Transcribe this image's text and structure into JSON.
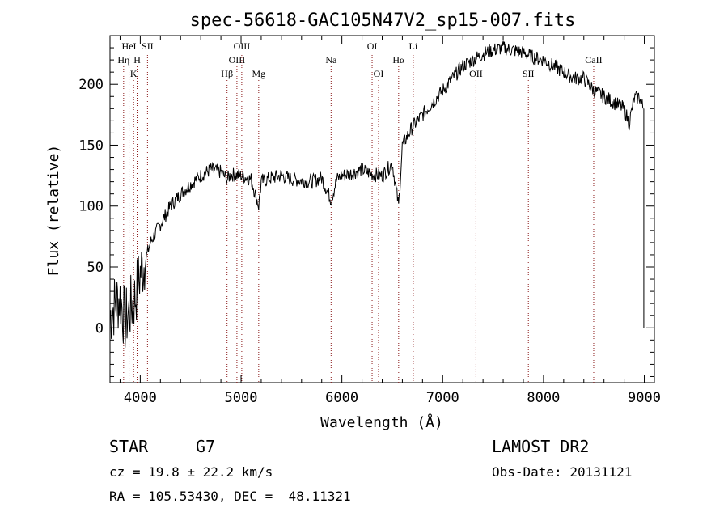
{
  "chart_data": {
    "type": "line",
    "title": "spec-56618-GAC105N47V2_sp15-007.fits",
    "xlabel": "Wavelength (Å)",
    "ylabel": "Flux (relative)",
    "xlim": [
      3700,
      9100
    ],
    "ylim": [
      -45,
      240
    ],
    "xticks": [
      4000,
      5000,
      6000,
      7000,
      8000,
      9000
    ],
    "yticks": [
      0,
      50,
      100,
      150,
      200
    ],
    "xtick_labels": [
      "4000",
      "5000",
      "6000",
      "7000",
      "8000",
      "9000"
    ],
    "ytick_labels": [
      "0",
      "50",
      "100",
      "150",
      "200"
    ],
    "grid": false,
    "series": [
      {
        "x": [
          3700,
          3750,
          3800,
          3850,
          3900,
          3950,
          4000,
          4050,
          4100,
          4200,
          4300,
          4400,
          4500,
          4600,
          4700,
          4800,
          4860,
          4900,
          5000,
          5100,
          5175,
          5200,
          5300,
          5400,
          5500,
          5600,
          5700,
          5800,
          5893,
          5950,
          6000,
          6100,
          6200,
          6300,
          6400,
          6500,
          6563,
          6600,
          6700,
          6800,
          6900,
          7000,
          7100,
          7200,
          7300,
          7400,
          7500,
          7600,
          7700,
          7800,
          7900,
          8000,
          8100,
          8200,
          8300,
          8400,
          8500,
          8600,
          8700,
          8800,
          8850,
          8900,
          8950,
          8990
        ],
        "values": [
          10,
          20,
          25,
          5,
          15,
          25,
          45,
          55,
          70,
          85,
          100,
          110,
          118,
          125,
          130,
          128,
          122,
          126,
          125,
          122,
          100,
          120,
          123,
          125,
          122,
          121,
          120,
          123,
          105,
          122,
          125,
          127,
          130,
          126,
          125,
          135,
          100,
          150,
          165,
          175,
          185,
          195,
          205,
          215,
          220,
          225,
          228,
          230,
          228,
          226,
          222,
          220,
          215,
          210,
          205,
          205,
          195,
          190,
          185,
          180,
          168,
          188,
          190,
          180
        ]
      }
    ],
    "annotations": [
      {
        "label": "HeI",
        "x": 3889,
        "row": "upper"
      },
      {
        "label": "SII",
        "x": 4072,
        "row": "upper"
      },
      {
        "label": "Hη",
        "x": 3835,
        "row": "middle"
      },
      {
        "label": "H",
        "x": 3969,
        "row": "middle"
      },
      {
        "label": "K",
        "x": 3934,
        "row": "lower"
      },
      {
        "label": "OIII",
        "x": 5007,
        "row": "upper"
      },
      {
        "label": "OIII",
        "x": 4959,
        "row": "middle"
      },
      {
        "label": "Hβ",
        "x": 4861,
        "row": "lower"
      },
      {
        "label": "Mg",
        "x": 5175,
        "row": "lower"
      },
      {
        "label": "Na",
        "x": 5893,
        "row": "middle"
      },
      {
        "label": "OI",
        "x": 6300,
        "row": "upper"
      },
      {
        "label": "OI",
        "x": 6364,
        "row": "lower"
      },
      {
        "label": "Hα",
        "x": 6563,
        "row": "middle"
      },
      {
        "label": "Li",
        "x": 6708,
        "row": "upper"
      },
      {
        "label": "OII",
        "x": 7330,
        "row": "lower"
      },
      {
        "label": "SII",
        "x": 7850,
        "row": "lower"
      },
      {
        "label": "CaII",
        "x": 8498,
        "row": "middle"
      }
    ],
    "colors": {
      "line": "#000000",
      "marker_lines": "#8b1a1a"
    }
  },
  "info": {
    "object_class": "STAR",
    "subclass": "G7",
    "survey": "LAMOST DR2",
    "cz": "cz = 19.8 ± 22.2 km/s",
    "obs_date": "Obs-Date: 20131121",
    "coords": "RA = 105.53430, DEC =  48.11321"
  }
}
